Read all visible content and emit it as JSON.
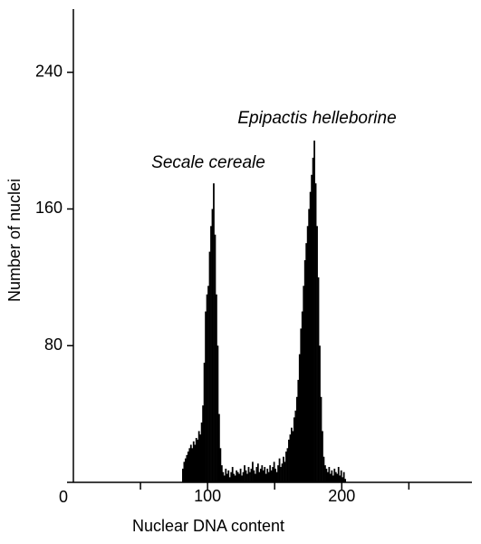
{
  "chart_data": {
    "type": "histogram",
    "xlabel": "Nuclear DNA content",
    "ylabel": "Number of nuclei",
    "annotations": [
      "Secale cereale",
      "Epipactis helleborine"
    ],
    "color": "#000000",
    "bins": [
      81,
      82,
      83,
      84,
      85,
      86,
      87,
      88,
      89,
      90,
      91,
      92,
      93,
      94,
      95,
      96,
      97,
      98,
      99,
      100,
      101,
      102,
      103,
      104,
      105,
      106,
      107,
      108,
      109,
      110,
      111,
      112,
      113,
      114,
      115,
      116,
      117,
      118,
      119,
      120,
      121,
      122,
      123,
      124,
      125,
      126,
      127,
      128,
      129,
      130,
      131,
      132,
      133,
      134,
      135,
      136,
      137,
      138,
      139,
      140,
      141,
      142,
      143,
      144,
      145,
      146,
      147,
      148,
      149,
      150,
      151,
      152,
      153,
      154,
      155,
      156,
      157,
      158,
      159,
      160,
      161,
      162,
      163,
      164,
      165,
      166,
      167,
      168,
      169,
      170,
      171,
      172,
      173,
      174,
      175,
      176,
      177,
      178,
      179,
      180,
      181,
      182,
      183,
      184,
      185,
      186,
      187,
      188,
      189,
      190,
      191,
      192,
      193,
      194,
      195,
      196,
      197,
      198,
      199,
      200,
      201,
      202,
      203
    ],
    "counts": [
      8,
      12,
      14,
      16,
      18,
      20,
      22,
      20,
      24,
      22,
      26,
      25,
      30,
      28,
      35,
      45,
      70,
      100,
      110,
      115,
      135,
      150,
      160,
      175,
      145,
      110,
      80,
      40,
      20,
      10,
      6,
      4,
      8,
      5,
      7,
      3,
      6,
      9,
      5,
      4,
      7,
      6,
      5,
      8,
      4,
      6,
      10,
      7,
      5,
      9,
      6,
      8,
      12,
      7,
      5,
      9,
      11,
      6,
      8,
      10,
      7,
      9,
      5,
      8,
      6,
      10,
      7,
      9,
      12,
      8,
      6,
      10,
      14,
      9,
      11,
      15,
      12,
      18,
      20,
      25,
      28,
      32,
      30,
      38,
      42,
      50,
      60,
      75,
      90,
      100,
      115,
      130,
      140,
      150,
      160,
      170,
      180,
      190,
      200,
      175,
      150,
      120,
      80,
      50,
      30,
      15,
      10,
      8,
      6,
      9,
      5,
      7,
      4,
      8,
      6,
      5,
      9,
      4,
      7,
      3,
      6,
      2
    ],
    "xlim": [
      0,
      297
    ],
    "xticks": [
      100,
      200
    ],
    "xminor": [
      50,
      150,
      250
    ],
    "ylim": [
      0,
      277
    ],
    "yticks": [
      0,
      80,
      160,
      240
    ]
  }
}
